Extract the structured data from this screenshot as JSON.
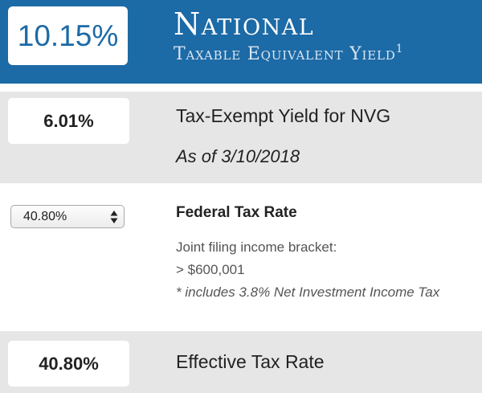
{
  "header": {
    "yield_value": "10.15%",
    "title": "National",
    "subtitle": "Taxable Equivalent Yield",
    "footnote_marker": "1",
    "background_color": "#1c6aa6"
  },
  "tax_exempt": {
    "value": "6.01%",
    "label": "Tax-Exempt Yield for NVG",
    "as_of": "As of 3/10/2018"
  },
  "federal": {
    "selected_rate": "40.80%",
    "dropdown_icon": "up-down-arrows-icon",
    "title": "Federal Tax Rate",
    "bracket_label": "Joint filing income bracket:",
    "bracket_value": "> $600,001",
    "note": "* includes 3.8% Net Investment Income Tax"
  },
  "effective": {
    "value": "40.80%",
    "label": "Effective Tax Rate"
  }
}
